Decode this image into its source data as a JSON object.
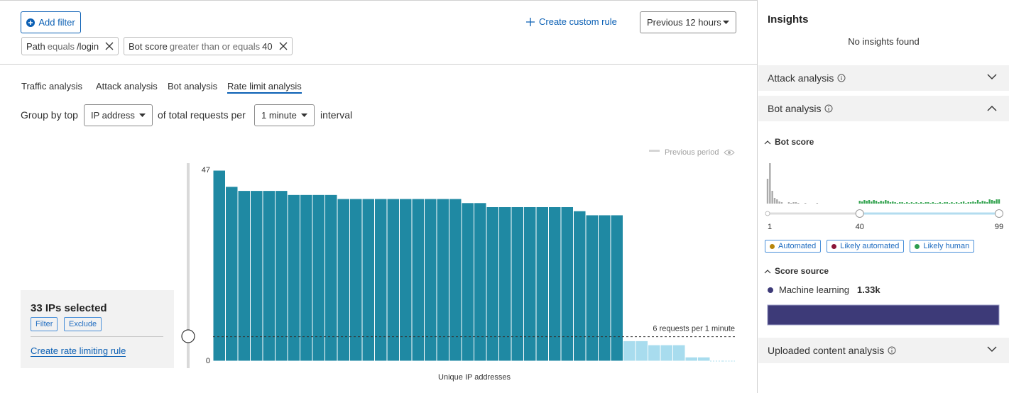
{
  "filters": {
    "add_button": "Add filter",
    "chips": [
      {
        "field": "Path",
        "operator": "equals",
        "value": "/login"
      },
      {
        "field": "Bot score",
        "operator": "greater than or equals",
        "value": "40"
      }
    ]
  },
  "toolbar": {
    "create_rule": "Create custom rule",
    "time_range": "Previous 12 hours"
  },
  "tabs": [
    "Traffic analysis",
    "Attack analysis",
    "Bot analysis",
    "Rate limit analysis"
  ],
  "group_by": {
    "prefix": "Group by top",
    "dimension": "IP address",
    "middle": "of total requests per",
    "interval": "1 minute",
    "suffix": "interval"
  },
  "selection": {
    "title": "33 IPs selected",
    "buttons": [
      "Filter",
      "Exclude"
    ],
    "link": "Create rate limiting rule"
  },
  "chart_data": [
    {
      "type": "bar",
      "legend": "Previous period",
      "x_label": "Unique IP addresses",
      "values": [
        47,
        43,
        42,
        42,
        42,
        42,
        41,
        41,
        41,
        41,
        40,
        40,
        40,
        40,
        40,
        40,
        40,
        40,
        40,
        40,
        39,
        39,
        38,
        38,
        38,
        38,
        38,
        38,
        38,
        37,
        36,
        36,
        36,
        5,
        5,
        4,
        4,
        4,
        1,
        1,
        0,
        0
      ],
      "ylim": [
        0,
        47
      ],
      "yticks": [
        0,
        47
      ],
      "color": "#1f89a3",
      "below_color": "#a8dcee",
      "threshold": 6,
      "threshold_label": "6 requests per 1 minute"
    },
    {
      "type": "bar",
      "title": "Bot score",
      "values": [
        35,
        57,
        18,
        8,
        6,
        3,
        2,
        0,
        0,
        2,
        1,
        2,
        2,
        1,
        0,
        0,
        1,
        0,
        0,
        0,
        0,
        1,
        0,
        0,
        0,
        0,
        0,
        0,
        0,
        0,
        0,
        0,
        0,
        0,
        0,
        0,
        0,
        0,
        0,
        4,
        3,
        5,
        4,
        5,
        3,
        5,
        4,
        2,
        4,
        3,
        5,
        4,
        2,
        3,
        2,
        1,
        2,
        2,
        1,
        2,
        1,
        2,
        1,
        2,
        1,
        2,
        1,
        2,
        2,
        1,
        2,
        1,
        1,
        2,
        1,
        2,
        2,
        1,
        2,
        1,
        2,
        1,
        2,
        3,
        1,
        2,
        2,
        3,
        2,
        5,
        2,
        4,
        3,
        2,
        6,
        5,
        4,
        6,
        6
      ],
      "xlim": [
        1,
        99
      ],
      "xticks": [
        1,
        40,
        99
      ],
      "range": [
        40,
        99
      ],
      "color": "#a9a9a9",
      "range_color": "#3aa655"
    }
  ],
  "sidebar": {
    "title": "Insights",
    "empty": "No insights found",
    "sections": [
      "Attack analysis",
      "Bot analysis",
      "Uploaded content analysis"
    ],
    "legend": [
      {
        "name": "Automated",
        "color": "#b8860b"
      },
      {
        "name": "Likely automated",
        "color": "#8b1538"
      },
      {
        "name": "Likely human",
        "color": "#2e9e4f"
      }
    ],
    "score_source": {
      "title": "Score source",
      "items": [
        {
          "name": "Machine learning",
          "value": 1330,
          "value_label": "1.33k",
          "color": "#3d3a78"
        }
      ]
    }
  }
}
